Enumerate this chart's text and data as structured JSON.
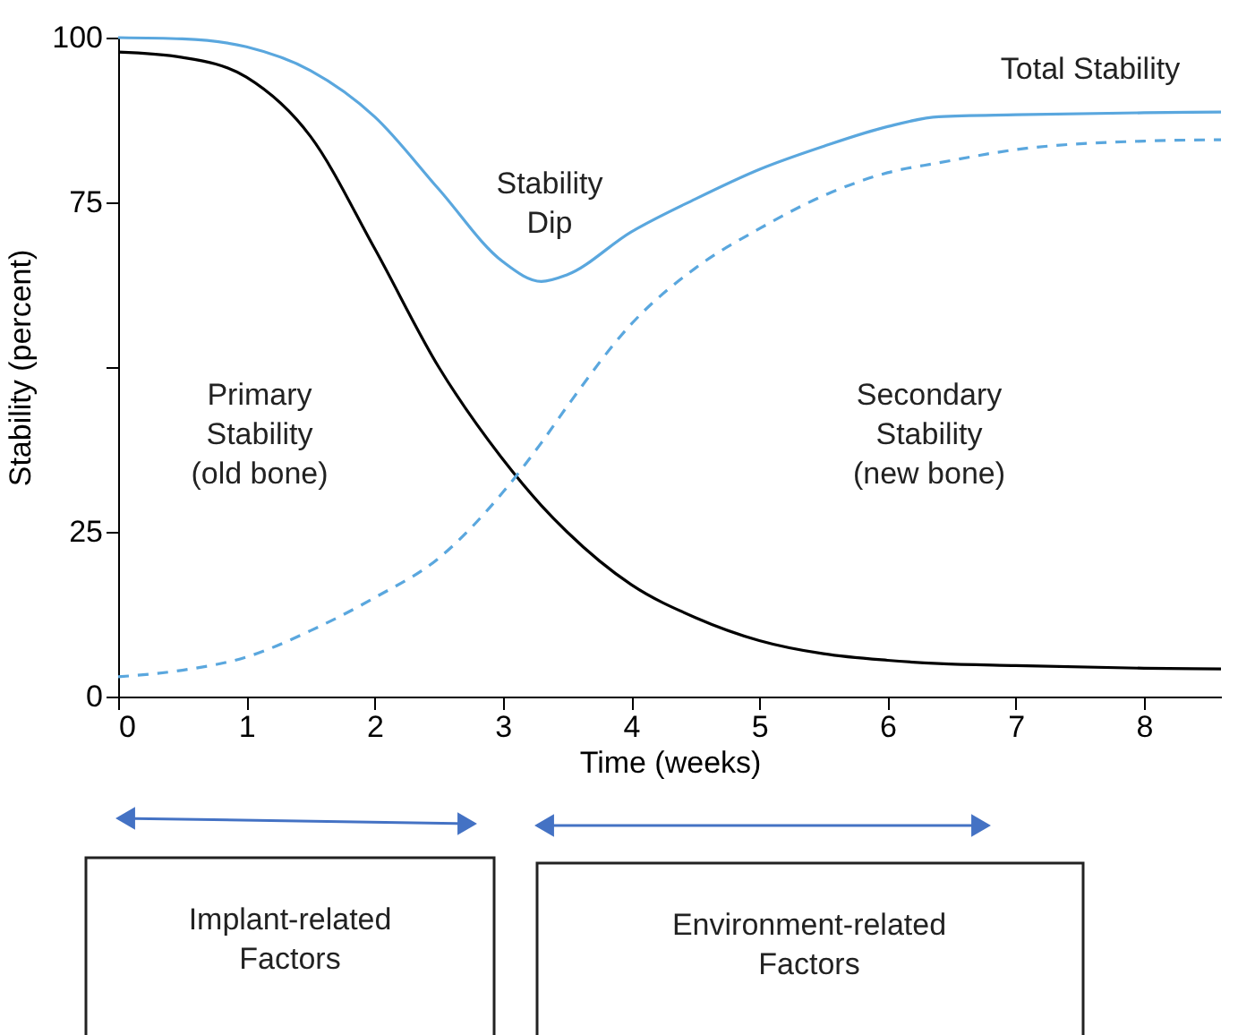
{
  "chart_data": {
    "type": "line",
    "xlabel": "Time (weeks)",
    "ylabel": "Stability (percent)",
    "x": [
      0,
      0.5,
      1,
      1.5,
      2,
      2.5,
      3,
      3.3,
      3.5,
      4,
      4.5,
      5,
      5.5,
      6,
      6.4,
      7,
      8,
      8.6
    ],
    "series": [
      {
        "color": "#5aa7de",
        "line_style": "solid",
        "values": [
          100,
          99.8,
          98.6,
          95,
          88,
          77,
          66,
          63,
          64,
          70.5,
          75.5,
          80,
          83.5,
          86.5,
          88,
          88.3,
          88.6,
          88.7
        ]
      },
      {
        "color": "#000000",
        "line_style": "solid",
        "values": [
          97.8,
          97,
          94,
          85,
          68,
          50,
          36,
          29,
          25,
          17,
          12,
          8.5,
          6.5,
          5.5,
          5,
          4.7,
          4.3,
          4.2
        ]
      },
      {
        "color": "#5aa7de",
        "line_style": "dashed",
        "values": [
          3,
          4,
          6,
          10,
          15,
          21,
          31,
          38.5,
          44,
          56.5,
          65,
          71,
          76,
          79.5,
          81,
          83,
          84.3,
          84.5
        ]
      }
    ],
    "xlim": [
      0,
      8.6
    ],
    "xticks": [
      0,
      1,
      2,
      3,
      4,
      5,
      6,
      7,
      8
    ],
    "ylim": [
      0,
      100
    ],
    "yticks": [
      0,
      25,
      {
        "value": 50,
        "label": null
      },
      75,
      100
    ],
    "grid": false,
    "annotations": [
      "Total Stability",
      "Stability\nDip",
      "Primary\nStability\n(old bone)",
      "Secondary\nStability\n(new bone)",
      "Implant-related\nFactors",
      "Environment-related\nFactors"
    ]
  }
}
